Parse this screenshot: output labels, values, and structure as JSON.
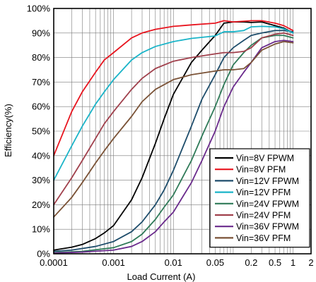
{
  "chart_data": {
    "type": "line",
    "xlabel": "Load Current (A)",
    "ylabel": "Efficiency(%)",
    "x_scale": "log",
    "xlim": [
      0.0001,
      2
    ],
    "ylim": [
      0,
      100
    ],
    "grid": true,
    "legend_position": "bottom-right",
    "x_ticks": [
      {
        "value": 0.0001,
        "label": "0.0001"
      },
      {
        "value": 0.001,
        "label": "0.001"
      },
      {
        "value": 0.01,
        "label": "0.01"
      },
      {
        "value": 0.05,
        "label": "0.05"
      },
      {
        "value": 0.2,
        "label": "0.2"
      },
      {
        "value": 0.5,
        "label": "0.5"
      },
      {
        "value": 1,
        "label": "1"
      },
      {
        "value": 2,
        "label": "2"
      }
    ],
    "y_ticks": [
      {
        "value": 0,
        "label": "0%"
      },
      {
        "value": 10,
        "label": "10%"
      },
      {
        "value": 20,
        "label": "20%"
      },
      {
        "value": 30,
        "label": "30%"
      },
      {
        "value": 40,
        "label": "40%"
      },
      {
        "value": 50,
        "label": "50%"
      },
      {
        "value": 60,
        "label": "60%"
      },
      {
        "value": 70,
        "label": "70%"
      },
      {
        "value": 80,
        "label": "80%"
      },
      {
        "value": 90,
        "label": "90%"
      },
      {
        "value": 100,
        "label": "100%"
      }
    ],
    "series": [
      {
        "name": "Vin=8V FPWM",
        "color": "#000000",
        "points": [
          [
            0.0001,
            1.5
          ],
          [
            0.0002,
            2.7
          ],
          [
            0.0003,
            3.8
          ],
          [
            0.0005,
            6.2
          ],
          [
            0.0007,
            8.5
          ],
          [
            0.001,
            11.5
          ],
          [
            0.002,
            22
          ],
          [
            0.003,
            31
          ],
          [
            0.005,
            45
          ],
          [
            0.007,
            55
          ],
          [
            0.01,
            65
          ],
          [
            0.02,
            78
          ],
          [
            0.03,
            83
          ],
          [
            0.05,
            89
          ],
          [
            0.07,
            94
          ],
          [
            0.1,
            94.5
          ],
          [
            0.15,
            94.5
          ],
          [
            0.2,
            94.3
          ],
          [
            0.3,
            94.5
          ],
          [
            0.5,
            93
          ],
          [
            0.7,
            92
          ],
          [
            1,
            90
          ]
        ]
      },
      {
        "name": "Vin=8V PFM",
        "color": "#e8151f",
        "points": [
          [
            0.0001,
            40
          ],
          [
            0.0002,
            58
          ],
          [
            0.0003,
            66
          ],
          [
            0.0005,
            74
          ],
          [
            0.0007,
            79
          ],
          [
            0.001,
            82
          ],
          [
            0.002,
            88
          ],
          [
            0.003,
            90
          ],
          [
            0.005,
            91.5
          ],
          [
            0.01,
            92.7
          ],
          [
            0.02,
            93.3
          ],
          [
            0.05,
            94
          ],
          [
            0.07,
            95
          ],
          [
            0.1,
            94.5
          ],
          [
            0.2,
            95
          ],
          [
            0.3,
            95
          ],
          [
            0.5,
            94
          ],
          [
            0.7,
            93
          ],
          [
            1,
            91
          ]
        ]
      },
      {
        "name": "Vin=12V FPWM",
        "color": "#1e4d6b",
        "points": [
          [
            0.0001,
            1
          ],
          [
            0.0002,
            1.5
          ],
          [
            0.0005,
            3
          ],
          [
            0.001,
            5
          ],
          [
            0.002,
            9
          ],
          [
            0.003,
            13
          ],
          [
            0.005,
            20
          ],
          [
            0.007,
            26
          ],
          [
            0.01,
            34
          ],
          [
            0.02,
            52
          ],
          [
            0.03,
            63
          ],
          [
            0.05,
            73
          ],
          [
            0.07,
            80
          ],
          [
            0.1,
            84
          ],
          [
            0.15,
            87
          ],
          [
            0.2,
            89
          ],
          [
            0.3,
            90
          ],
          [
            0.5,
            91
          ],
          [
            0.7,
            91
          ],
          [
            1,
            90.5
          ]
        ]
      },
      {
        "name": "Vin=12V PFM",
        "color": "#1ab4c8",
        "points": [
          [
            0.0001,
            30
          ],
          [
            0.0002,
            44
          ],
          [
            0.0003,
            52
          ],
          [
            0.0005,
            61
          ],
          [
            0.0007,
            66
          ],
          [
            0.001,
            71
          ],
          [
            0.002,
            79
          ],
          [
            0.003,
            82
          ],
          [
            0.005,
            84.5
          ],
          [
            0.01,
            86.5
          ],
          [
            0.02,
            87.8
          ],
          [
            0.05,
            88.8
          ],
          [
            0.07,
            90.5
          ],
          [
            0.1,
            90.5
          ],
          [
            0.15,
            91
          ],
          [
            0.2,
            92.5
          ],
          [
            0.3,
            92.7
          ],
          [
            0.5,
            92.5
          ],
          [
            0.7,
            91.7
          ],
          [
            1,
            90
          ]
        ]
      },
      {
        "name": "Vin=24V FPWM",
        "color": "#2f7a58",
        "points": [
          [
            0.0001,
            0.5
          ],
          [
            0.0003,
            1
          ],
          [
            0.001,
            2.5
          ],
          [
            0.002,
            5
          ],
          [
            0.003,
            8
          ],
          [
            0.005,
            14
          ],
          [
            0.007,
            19
          ],
          [
            0.01,
            24
          ],
          [
            0.02,
            38
          ],
          [
            0.03,
            48
          ],
          [
            0.05,
            60
          ],
          [
            0.07,
            69
          ],
          [
            0.1,
            77
          ],
          [
            0.15,
            82
          ],
          [
            0.2,
            85
          ],
          [
            0.3,
            88
          ],
          [
            0.5,
            89
          ],
          [
            0.7,
            89
          ],
          [
            1,
            88
          ]
        ]
      },
      {
        "name": "Vin=24V PFM",
        "color": "#a0404c",
        "points": [
          [
            0.0001,
            20
          ],
          [
            0.0002,
            31
          ],
          [
            0.0003,
            38
          ],
          [
            0.0005,
            47
          ],
          [
            0.0007,
            53
          ],
          [
            0.001,
            58
          ],
          [
            0.002,
            67
          ],
          [
            0.003,
            71.5
          ],
          [
            0.005,
            75.5
          ],
          [
            0.01,
            78.5
          ],
          [
            0.02,
            80
          ],
          [
            0.05,
            81.5
          ],
          [
            0.07,
            82
          ],
          [
            0.1,
            82
          ],
          [
            0.15,
            82.5
          ],
          [
            0.2,
            84
          ],
          [
            0.3,
            88
          ],
          [
            0.5,
            89.5
          ],
          [
            0.7,
            90
          ],
          [
            1,
            89
          ]
        ]
      },
      {
        "name": "Vin=36V FPWM",
        "color": "#6a2a8c",
        "points": [
          [
            0.0001,
            0.3
          ],
          [
            0.0003,
            0.7
          ],
          [
            0.001,
            1.5
          ],
          [
            0.002,
            3
          ],
          [
            0.003,
            5
          ],
          [
            0.005,
            9
          ],
          [
            0.007,
            13
          ],
          [
            0.01,
            17
          ],
          [
            0.02,
            29
          ],
          [
            0.03,
            38
          ],
          [
            0.05,
            50
          ],
          [
            0.07,
            60
          ],
          [
            0.1,
            68
          ],
          [
            0.15,
            74
          ],
          [
            0.2,
            78
          ],
          [
            0.3,
            84
          ],
          [
            0.5,
            86.5
          ],
          [
            0.7,
            87
          ],
          [
            1,
            86.5
          ]
        ]
      },
      {
        "name": "Vin=36V PFM",
        "color": "#7a5236",
        "points": [
          [
            0.0001,
            15
          ],
          [
            0.0002,
            23
          ],
          [
            0.0003,
            29
          ],
          [
            0.0005,
            37
          ],
          [
            0.0007,
            42
          ],
          [
            0.001,
            47
          ],
          [
            0.002,
            56
          ],
          [
            0.003,
            62
          ],
          [
            0.005,
            67
          ],
          [
            0.01,
            71
          ],
          [
            0.02,
            73
          ],
          [
            0.05,
            74.5
          ],
          [
            0.07,
            75
          ],
          [
            0.1,
            75
          ],
          [
            0.15,
            75.5
          ],
          [
            0.2,
            78
          ],
          [
            0.3,
            83
          ],
          [
            0.5,
            85.5
          ],
          [
            0.7,
            86.5
          ],
          [
            1,
            86
          ]
        ]
      }
    ]
  }
}
